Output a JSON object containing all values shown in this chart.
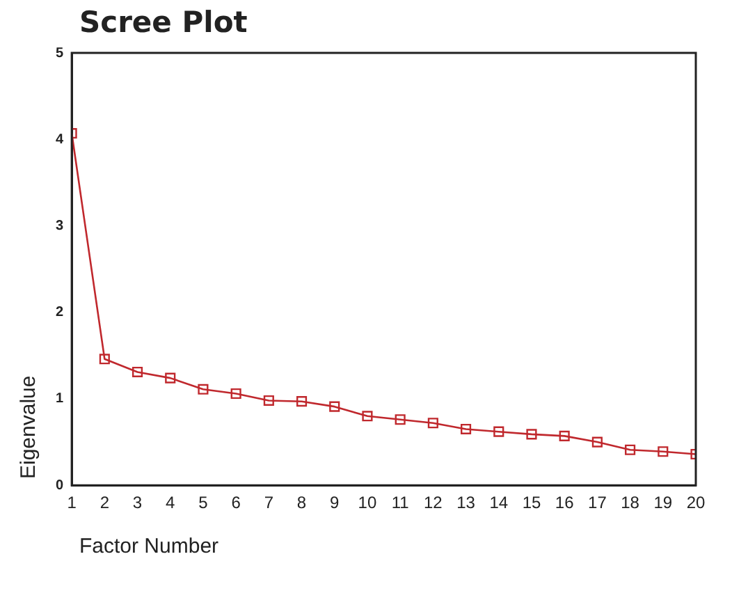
{
  "chart_data": {
    "type": "line",
    "title": "Scree Plot",
    "xlabel": "Factor Number",
    "ylabel": "Eigenvalue",
    "x": [
      1,
      2,
      3,
      4,
      5,
      6,
      7,
      8,
      9,
      10,
      11,
      12,
      13,
      14,
      15,
      16,
      17,
      18,
      19,
      20
    ],
    "series": [
      {
        "color": "#c0282d",
        "values": [
          4.07,
          1.46,
          1.31,
          1.24,
          1.11,
          1.06,
          0.98,
          0.97,
          0.91,
          0.8,
          0.76,
          0.72,
          0.65,
          0.62,
          0.59,
          0.57,
          0.5,
          0.41,
          0.39,
          0.36
        ]
      }
    ],
    "xlim": [
      1,
      20
    ],
    "xticks": [
      1,
      2,
      3,
      4,
      5,
      6,
      7,
      8,
      9,
      10,
      11,
      12,
      13,
      14,
      15,
      16,
      17,
      18,
      19,
      20
    ],
    "ylim": [
      0,
      5
    ],
    "yticks": [
      0,
      1,
      2,
      3,
      4,
      5
    ],
    "grid": false,
    "legend": false,
    "marker": "square",
    "line_style": "solid"
  }
}
